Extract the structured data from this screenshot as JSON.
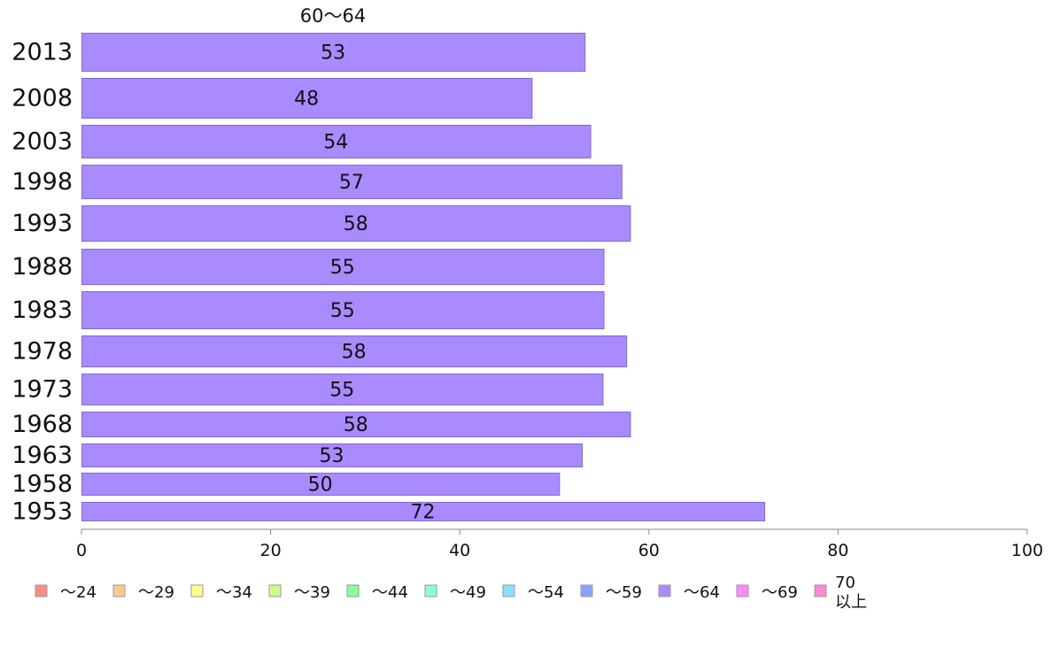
{
  "chart_data": {
    "type": "bar",
    "orientation": "horizontal",
    "title": "60〜64",
    "xlabel": "",
    "ylabel": "",
    "xlim": [
      0,
      100
    ],
    "x_ticks": [
      "0",
      "20",
      "40",
      "60",
      "80",
      "100"
    ],
    "categories": [
      "2013",
      "2008",
      "2003",
      "1998",
      "1993",
      "1988",
      "1983",
      "1978",
      "1973",
      "1968",
      "1963",
      "1958",
      "1953"
    ],
    "values": [
      53.2,
      47.6,
      53.8,
      57.1,
      58.0,
      55.2,
      55.2,
      57.6,
      55.1,
      58.0,
      52.9,
      50.5,
      72.2
    ],
    "value_labels": [
      "53",
      "48",
      "54",
      "57",
      "58",
      "55",
      "55",
      "58",
      "55",
      "58",
      "53",
      "50",
      "72"
    ],
    "bar_color": "#a98bff",
    "bar_stroke": "#7f6ad8",
    "axis_color": "#888888",
    "grid": false,
    "legend": {
      "placement": "bottom",
      "entries": [
        {
          "label": "〜24",
          "color": "#ff8a8a"
        },
        {
          "label": "〜29",
          "color": "#ffc98a"
        },
        {
          "label": "〜34",
          "color": "#ffff8a"
        },
        {
          "label": "〜39",
          "color": "#c8ff8a"
        },
        {
          "label": "〜44",
          "color": "#8aff9e"
        },
        {
          "label": "〜49",
          "color": "#8affd8"
        },
        {
          "label": "〜54",
          "color": "#8ae0ff"
        },
        {
          "label": "〜59",
          "color": "#8aa2ff"
        },
        {
          "label": "〜64",
          "color": "#a98bff"
        },
        {
          "label": "〜69",
          "color": "#ff8aff"
        },
        {
          "label": "70\n以上",
          "color": "#ff8ad0"
        }
      ]
    }
  }
}
